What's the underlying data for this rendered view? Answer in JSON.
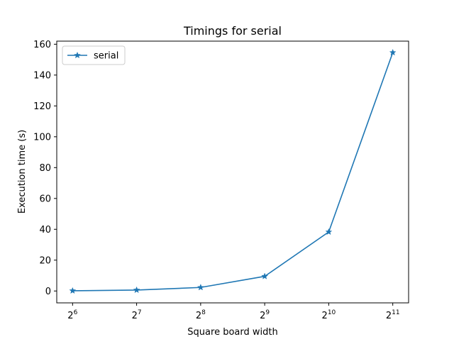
{
  "chart_data": {
    "type": "line",
    "title": "Timings for serial",
    "xlabel": "Square board width",
    "ylabel": "Execution time (s)",
    "x_scale": "log2",
    "x": [
      64,
      128,
      256,
      512,
      1024,
      2048
    ],
    "x_tick_labels": [
      {
        "base": "2",
        "exp": "6"
      },
      {
        "base": "2",
        "exp": "7"
      },
      {
        "base": "2",
        "exp": "8"
      },
      {
        "base": "2",
        "exp": "9"
      },
      {
        "base": "2",
        "exp": "10"
      },
      {
        "base": "2",
        "exp": "11"
      }
    ],
    "y_ticks": [
      "0",
      "20",
      "40",
      "60",
      "80",
      "100",
      "120",
      "140",
      "160"
    ],
    "ylim": [
      -7.7,
      162
    ],
    "grid": false,
    "legend_position": "upper-left",
    "series": [
      {
        "name": "serial",
        "color": "#1f77b4",
        "marker": "star",
        "values": [
          0.15,
          0.6,
          2.3,
          9.5,
          38.3,
          154.6
        ]
      }
    ]
  }
}
